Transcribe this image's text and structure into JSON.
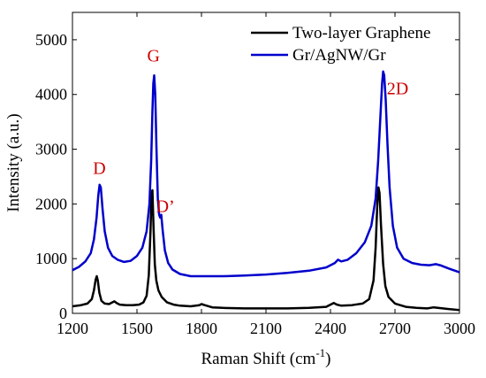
{
  "chart_data": {
    "type": "line",
    "xlabel": "Raman Shift (cm",
    "xlabel_sup": "-1",
    "xlabel_close": ")",
    "ylabel": "Intensity (a.u.)",
    "xlim": [
      1200,
      3000
    ],
    "ylim": [
      0,
      5500
    ],
    "xticks": [
      1200,
      1500,
      1800,
      2100,
      2400,
      2700,
      3000
    ],
    "yticks": [
      0,
      1000,
      2000,
      3000,
      4000,
      5000
    ],
    "grid": false,
    "legend_position": "top-right",
    "series": [
      {
        "name": "Two-layer Graphene",
        "color": "#000000",
        "points": [
          [
            1200,
            130
          ],
          [
            1240,
            150
          ],
          [
            1270,
            180
          ],
          [
            1290,
            260
          ],
          [
            1300,
            420
          ],
          [
            1308,
            620
          ],
          [
            1313,
            680
          ],
          [
            1318,
            600
          ],
          [
            1325,
            380
          ],
          [
            1335,
            230
          ],
          [
            1350,
            180
          ],
          [
            1370,
            170
          ],
          [
            1385,
            200
          ],
          [
            1395,
            220
          ],
          [
            1405,
            190
          ],
          [
            1420,
            160
          ],
          [
            1450,
            150
          ],
          [
            1480,
            150
          ],
          [
            1510,
            160
          ],
          [
            1530,
            200
          ],
          [
            1545,
            320
          ],
          [
            1555,
            700
          ],
          [
            1563,
            1500
          ],
          [
            1568,
            2200
          ],
          [
            1572,
            2250
          ],
          [
            1577,
            1600
          ],
          [
            1583,
            900
          ],
          [
            1590,
            600
          ],
          [
            1600,
            420
          ],
          [
            1615,
            300
          ],
          [
            1640,
            200
          ],
          [
            1670,
            160
          ],
          [
            1700,
            140
          ],
          [
            1750,
            130
          ],
          [
            1790,
            150
          ],
          [
            1800,
            170
          ],
          [
            1815,
            150
          ],
          [
            1850,
            110
          ],
          [
            1900,
            100
          ],
          [
            2000,
            90
          ],
          [
            2100,
            90
          ],
          [
            2200,
            90
          ],
          [
            2300,
            100
          ],
          [
            2380,
            120
          ],
          [
            2400,
            160
          ],
          [
            2415,
            190
          ],
          [
            2430,
            160
          ],
          [
            2450,
            140
          ],
          [
            2500,
            150
          ],
          [
            2550,
            180
          ],
          [
            2580,
            260
          ],
          [
            2600,
            600
          ],
          [
            2610,
            1200
          ],
          [
            2618,
            2000
          ],
          [
            2623,
            2300
          ],
          [
            2628,
            2200
          ],
          [
            2635,
            1600
          ],
          [
            2645,
            900
          ],
          [
            2655,
            500
          ],
          [
            2670,
            300
          ],
          [
            2700,
            180
          ],
          [
            2750,
            120
          ],
          [
            2800,
            100
          ],
          [
            2850,
            90
          ],
          [
            2880,
            110
          ],
          [
            2900,
            100
          ],
          [
            2950,
            80
          ],
          [
            3000,
            60
          ]
        ]
      },
      {
        "name": "Gr/AgNW/Gr",
        "color": "#0000cc",
        "points": [
          [
            1200,
            790
          ],
          [
            1230,
            850
          ],
          [
            1260,
            950
          ],
          [
            1285,
            1100
          ],
          [
            1300,
            1350
          ],
          [
            1312,
            1750
          ],
          [
            1320,
            2150
          ],
          [
            1326,
            2350
          ],
          [
            1332,
            2300
          ],
          [
            1340,
            1900
          ],
          [
            1350,
            1500
          ],
          [
            1365,
            1200
          ],
          [
            1385,
            1050
          ],
          [
            1410,
            980
          ],
          [
            1440,
            940
          ],
          [
            1470,
            960
          ],
          [
            1500,
            1050
          ],
          [
            1525,
            1200
          ],
          [
            1545,
            1500
          ],
          [
            1558,
            2000
          ],
          [
            1566,
            2800
          ],
          [
            1572,
            3700
          ],
          [
            1576,
            4200
          ],
          [
            1580,
            4350
          ],
          [
            1585,
            4000
          ],
          [
            1591,
            3000
          ],
          [
            1597,
            2100
          ],
          [
            1603,
            1800
          ],
          [
            1608,
            1750
          ],
          [
            1613,
            1800
          ],
          [
            1620,
            1500
          ],
          [
            1630,
            1150
          ],
          [
            1645,
            920
          ],
          [
            1665,
            800
          ],
          [
            1700,
            720
          ],
          [
            1750,
            680
          ],
          [
            1800,
            680
          ],
          [
            1900,
            680
          ],
          [
            2000,
            690
          ],
          [
            2100,
            710
          ],
          [
            2200,
            740
          ],
          [
            2300,
            780
          ],
          [
            2380,
            840
          ],
          [
            2420,
            920
          ],
          [
            2435,
            980
          ],
          [
            2450,
            950
          ],
          [
            2480,
            980
          ],
          [
            2520,
            1100
          ],
          [
            2560,
            1300
          ],
          [
            2590,
            1600
          ],
          [
            2610,
            2100
          ],
          [
            2622,
            2800
          ],
          [
            2632,
            3600
          ],
          [
            2640,
            4200
          ],
          [
            2645,
            4420
          ],
          [
            2650,
            4350
          ],
          [
            2657,
            3900
          ],
          [
            2665,
            3100
          ],
          [
            2675,
            2300
          ],
          [
            2690,
            1600
          ],
          [
            2710,
            1200
          ],
          [
            2740,
            1000
          ],
          [
            2780,
            920
          ],
          [
            2820,
            890
          ],
          [
            2860,
            880
          ],
          [
            2890,
            900
          ],
          [
            2910,
            880
          ],
          [
            2950,
            820
          ],
          [
            3000,
            750
          ]
        ]
      }
    ],
    "annotations": [
      {
        "text": "D",
        "x": 1325,
        "y": 2550,
        "color": "#cc0000"
      },
      {
        "text": "G",
        "x": 1577,
        "y": 4600,
        "color": "#cc0000"
      },
      {
        "text": "D’",
        "x": 1632,
        "y": 1850,
        "color": "#cc0000"
      },
      {
        "text": "2D",
        "x": 2712,
        "y": 4000,
        "color": "#cc0000"
      }
    ]
  }
}
